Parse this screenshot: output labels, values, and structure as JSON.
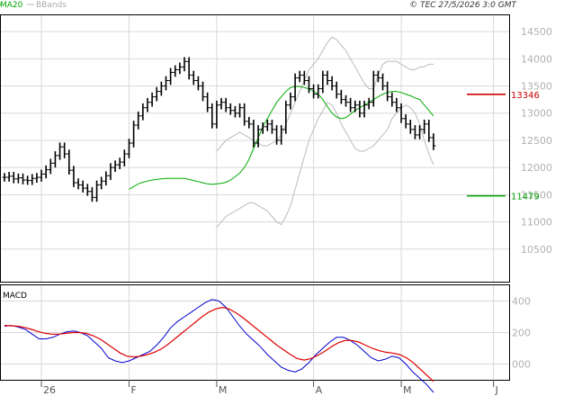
{
  "header": {
    "legend": [
      {
        "label": "MA20",
        "color": "#00aa00"
      },
      {
        "label": "BBands",
        "color": "#aaaaaa"
      }
    ],
    "copyright": "© TEC 27/5/2026 3:0 GMT"
  },
  "macd_panel": {
    "title": "MACD"
  },
  "colors": {
    "bars": "#000000",
    "ma20": "#00aa00",
    "bbands": "#bbbbbb",
    "grid": "#d8d8d8",
    "resistance": "#cc0000",
    "support": "#00a000",
    "macd_line": "#0000cc",
    "signal_line": "#dd0000",
    "panel_bg": "#ffffff",
    "tick_text": "#b0b0b0"
  },
  "chart_data": [
    {
      "type": "ohlc",
      "title": "",
      "ylim": [
        9900,
        14800
      ],
      "y_ticks": [
        10500,
        11000,
        11500,
        12000,
        12500,
        13000,
        13500,
        14000,
        14500
      ],
      "y_tick_labels": [
        "10500",
        "11000",
        "11500",
        "12000",
        "12500",
        "13000",
        "13500",
        "14000",
        "14500"
      ],
      "x_ticks": [
        {
          "label": "26",
          "index": 8
        },
        {
          "label": "F",
          "index": 27
        },
        {
          "label": "M",
          "index": 46
        },
        {
          "label": "A",
          "index": 67
        },
        {
          "label": "M",
          "index": 86
        },
        {
          "label": "J",
          "index": 106
        }
      ],
      "grid": true,
      "series": [
        {
          "name": "Price",
          "kind": "close",
          "values": [
            11820,
            11840,
            11790,
            11810,
            11770,
            11760,
            11800,
            11820,
            11880,
            11960,
            12080,
            12220,
            12380,
            12250,
            11950,
            11720,
            11680,
            11620,
            11560,
            11450,
            11680,
            11750,
            11850,
            12000,
            12050,
            12100,
            12250,
            12450,
            12780,
            12950,
            13100,
            13200,
            13300,
            13400,
            13500,
            13600,
            13750,
            13800,
            13850,
            13950,
            13700,
            13600,
            13500,
            13300,
            13100,
            12800,
            13150,
            13200,
            13100,
            13050,
            13000,
            13100,
            12850,
            12800,
            12450,
            12700,
            12750,
            12800,
            12700,
            12500,
            12700,
            13150,
            13300,
            13650,
            13700,
            13600,
            13450,
            13350,
            13450,
            13700,
            13600,
            13500,
            13350,
            13250,
            13200,
            13100,
            13150,
            13000,
            13150,
            13200,
            13700,
            13650,
            13500,
            13300,
            13200,
            13100,
            12900,
            12800,
            12700,
            12600,
            12700,
            12800,
            12550,
            12400
          ]
        },
        {
          "name": "MA20",
          "kind": "line",
          "values": [
            11600,
            11650,
            11700,
            11730,
            11750,
            11770,
            11780,
            11790,
            11800,
            11800,
            11800,
            11800,
            11800,
            11780,
            11760,
            11740,
            11720,
            11700,
            11690,
            11700,
            11710,
            11730,
            11770,
            11830,
            11900,
            12000,
            12150,
            12350,
            12550,
            12750,
            12900,
            13050,
            13200,
            13300,
            13400,
            13470,
            13490,
            13490,
            13470,
            13450,
            13400,
            13350,
            13250,
            13120,
            13000,
            12930,
            12900,
            12920,
            12980,
            13050,
            13100,
            13150,
            13200,
            13250,
            13300,
            13350,
            13380,
            13400,
            13400,
            13380,
            13350,
            13320,
            13280,
            13250,
            13150,
            13050,
            12950
          ]
        },
        {
          "name": "BBand upper",
          "kind": "line",
          "values": [
            12300,
            12400,
            12500,
            12550,
            12600,
            12650,
            12600,
            12550,
            12500,
            12450,
            12400,
            12400,
            12450,
            12500,
            12600,
            12800,
            13000,
            13200,
            13400,
            13600,
            13800,
            13900,
            14000,
            14150,
            14300,
            14400,
            14350,
            14250,
            14150,
            14000,
            13850,
            13700,
            13550,
            13450,
            13450,
            13700,
            13900,
            13950,
            13950,
            13950,
            13900,
            13850,
            13800,
            13800,
            13850,
            13850,
            13900,
            13900
          ]
        },
        {
          "name": "BBand lower",
          "kind": "line",
          "values": [
            10900,
            11000,
            11100,
            11150,
            11200,
            11250,
            11300,
            11350,
            11350,
            11300,
            11250,
            11200,
            11100,
            11000,
            10950,
            11100,
            11300,
            11600,
            11900,
            12200,
            12500,
            12700,
            12900,
            13050,
            13200,
            13150,
            13000,
            12800,
            12650,
            12500,
            12350,
            12300,
            12300,
            12350,
            12400,
            12500,
            12600,
            12700,
            12900,
            13000,
            13100,
            13150,
            13100,
            13000,
            12800,
            12500,
            12250,
            12050
          ]
        }
      ],
      "levels": [
        {
          "label": "13346",
          "value": 13346,
          "color": "#cc0000"
        },
        {
          "label": "11479",
          "value": 11479,
          "color": "#00a000"
        }
      ]
    },
    {
      "type": "line",
      "title": "MACD",
      "ylim": [
        -100,
        500
      ],
      "y_ticks": [
        0,
        200,
        400
      ],
      "y_tick_labels": [
        "000",
        "200",
        "400"
      ],
      "grid": true,
      "series": [
        {
          "name": "MACD",
          "values": [
            240,
            245,
            235,
            220,
            190,
            160,
            160,
            170,
            190,
            205,
            210,
            200,
            180,
            140,
            100,
            40,
            20,
            10,
            20,
            40,
            60,
            80,
            120,
            170,
            230,
            270,
            300,
            330,
            360,
            390,
            410,
            400,
            360,
            300,
            240,
            190,
            150,
            110,
            60,
            20,
            -20,
            -40,
            -50,
            -30,
            10,
            60,
            100,
            140,
            170,
            170,
            150,
            120,
            80,
            40,
            20,
            30,
            50,
            40,
            0,
            -50,
            -90,
            -130,
            -180
          ]
        },
        {
          "name": "Signal",
          "values": [
            245,
            243,
            240,
            232,
            220,
            205,
            195,
            190,
            190,
            195,
            200,
            200,
            195,
            180,
            160,
            130,
            100,
            70,
            50,
            45,
            50,
            60,
            75,
            95,
            125,
            160,
            195,
            230,
            265,
            300,
            330,
            350,
            360,
            350,
            325,
            295,
            260,
            225,
            190,
            155,
            120,
            90,
            60,
            35,
            25,
            35,
            55,
            80,
            110,
            135,
            150,
            150,
            140,
            120,
            100,
            85,
            75,
            70,
            60,
            40,
            10,
            -30,
            -70,
            -110
          ]
        }
      ]
    }
  ]
}
